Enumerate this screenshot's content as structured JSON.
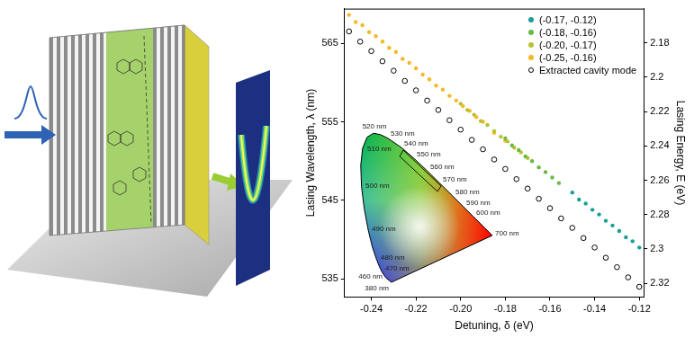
{
  "chart_data": {
    "type": "scatter",
    "x_label": "Detuning, δ (eV)",
    "y_label": "Lasing Wavelength, λ (nm)",
    "y2_label": "Lasing Energy, E (eV)",
    "xlim": [
      -0.252,
      -0.118
    ],
    "xticks": [
      -0.24,
      -0.22,
      {
        "value": -0.2,
        "label": "-0.20"
      },
      -0.18,
      -0.16,
      -0.14,
      -0.12
    ],
    "ylim": [
      532.7,
      569.4
    ],
    "yticks": [
      535,
      545,
      555,
      565
    ],
    "y2lim": [
      2.328,
      2.16
    ],
    "y2ticks": [
      2.18,
      2.2,
      2.22,
      2.24,
      2.26,
      2.28,
      2.3,
      2.32
    ],
    "grid": false,
    "legend": "upper right",
    "series": [
      {
        "name": "(-0.17, -0.12)",
        "color": "#1b9e94",
        "marker": "circle",
        "x": [
          -0.15,
          -0.147,
          -0.144,
          -0.141,
          -0.138,
          -0.135,
          -0.132,
          -0.129,
          -0.126,
          -0.123,
          -0.12
        ],
        "values": [
          546.0,
          545.1,
          544.6,
          543.8,
          543.2,
          542.4,
          541.8,
          541.1,
          540.3,
          539.8,
          539.0
        ]
      },
      {
        "name": "(-0.18, -0.16)",
        "color": "#66bb44",
        "marker": "circle",
        "x": [
          -0.18,
          -0.177,
          -0.174,
          -0.171,
          -0.168,
          -0.165,
          -0.162,
          -0.159,
          -0.156
        ],
        "values": [
          552.9,
          552.0,
          551.4,
          550.6,
          550.0,
          549.2,
          548.6,
          547.9,
          547.2
        ]
      },
      {
        "name": "(-0.20, -0.17)",
        "color": "#b8c22e",
        "marker": "circle",
        "x": [
          -0.2,
          -0.197,
          -0.194,
          -0.191,
          -0.188,
          -0.185,
          -0.182,
          -0.179,
          -0.176,
          -0.173,
          -0.17
        ],
        "values": [
          557.3,
          556.5,
          555.9,
          555.1,
          554.6,
          553.8,
          553.1,
          552.5,
          551.7,
          551.1,
          550.4
        ]
      },
      {
        "name": "(-0.25, -0.16)",
        "color": "#f5b828",
        "marker": "circle",
        "x": [
          -0.25,
          -0.247,
          -0.244,
          -0.241,
          -0.238,
          -0.235,
          -0.232,
          -0.229,
          -0.226,
          -0.223,
          -0.22,
          -0.217,
          -0.214,
          -0.211,
          -0.208,
          -0.205,
          -0.202,
          -0.199,
          -0.196,
          -0.193,
          -0.19,
          -0.185,
          -0.18
        ],
        "values": [
          568.6,
          567.7,
          567.3,
          566.4,
          565.9,
          565.2,
          564.4,
          563.9,
          563.0,
          562.5,
          561.8,
          561.0,
          560.4,
          559.6,
          559.1,
          558.3,
          557.7,
          557.0,
          556.4,
          555.6,
          555.0,
          553.6,
          552.6
        ]
      },
      {
        "name": "Extracted cavity mode",
        "color": "#000000",
        "marker": "open_circle",
        "x": [
          -0.25,
          -0.245,
          -0.24,
          -0.235,
          -0.23,
          -0.225,
          -0.22,
          -0.215,
          -0.21,
          -0.205,
          -0.2,
          -0.195,
          -0.19,
          -0.185,
          -0.18,
          -0.175,
          -0.17,
          -0.165,
          -0.16,
          -0.155,
          -0.15,
          -0.145,
          -0.14,
          -0.135,
          -0.13,
          -0.125,
          -0.12
        ],
        "values": [
          566.5,
          565.2,
          564.0,
          562.7,
          561.5,
          560.2,
          559.0,
          557.7,
          556.5,
          555.2,
          554.0,
          552.7,
          551.5,
          550.2,
          549.0,
          547.7,
          546.5,
          545.2,
          544.0,
          542.7,
          541.5,
          540.2,
          539.0,
          537.7,
          536.5,
          535.2,
          534.0
        ]
      }
    ],
    "inset": {
      "type": "chromaticity diagram",
      "labels": [
        "520 nm",
        "530 nm",
        "540 nm",
        "550 nm",
        "560 nm",
        "570 nm",
        "580 nm",
        "590 nm",
        "600 nm",
        "700 nm",
        "510 nm",
        "500 nm",
        "490 nm",
        "480 nm",
        "470 nm",
        "460 nm",
        "380 nm"
      ]
    }
  }
}
